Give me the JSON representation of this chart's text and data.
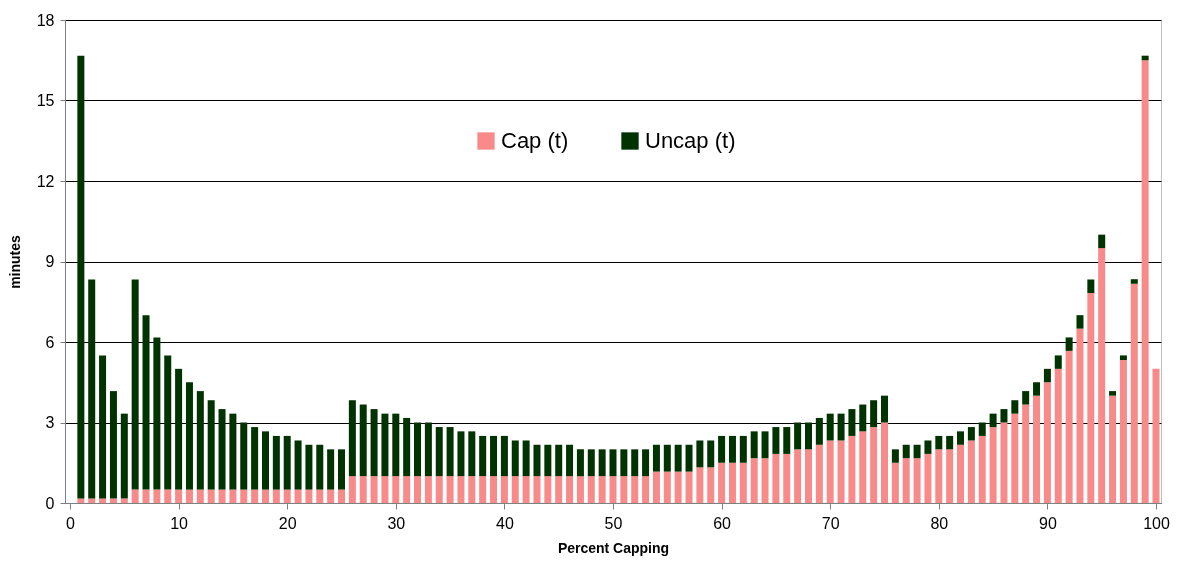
{
  "chart_data": {
    "type": "bar",
    "stacked": true,
    "xlabel": "Percent Capping",
    "ylabel": "minutes",
    "x": [
      1,
      2,
      3,
      4,
      5,
      6,
      7,
      8,
      9,
      10,
      11,
      12,
      13,
      14,
      15,
      16,
      17,
      18,
      19,
      20,
      21,
      22,
      23,
      24,
      25,
      26,
      27,
      28,
      29,
      30,
      31,
      32,
      33,
      34,
      35,
      36,
      37,
      38,
      39,
      40,
      41,
      42,
      43,
      44,
      45,
      46,
      47,
      48,
      49,
      50,
      51,
      52,
      53,
      54,
      55,
      56,
      57,
      58,
      59,
      60,
      61,
      62,
      63,
      64,
      65,
      66,
      67,
      68,
      69,
      70,
      71,
      72,
      73,
      74,
      75,
      76,
      77,
      78,
      79,
      80,
      81,
      82,
      83,
      84,
      85,
      86,
      87,
      88,
      89,
      90,
      91,
      92,
      93,
      94,
      95,
      96,
      97,
      98,
      99,
      100
    ],
    "xlim": [
      0,
      100
    ],
    "xticks": [
      0,
      10,
      20,
      30,
      40,
      50,
      60,
      70,
      80,
      90,
      100
    ],
    "ylim": [
      0,
      18
    ],
    "yticks": [
      0,
      3,
      6,
      9,
      12,
      15,
      18
    ],
    "grid": "y",
    "legend": "top",
    "series": [
      {
        "name": "Cap (t)",
        "color": "#f88a8a",
        "values": [
          0.17,
          0.17,
          0.17,
          0.17,
          0.17,
          0.5,
          0.5,
          0.5,
          0.5,
          0.5,
          0.5,
          0.5,
          0.5,
          0.5,
          0.5,
          0.5,
          0.5,
          0.5,
          0.5,
          0.5,
          0.5,
          0.5,
          0.5,
          0.5,
          0.5,
          1.0,
          1.0,
          1.0,
          1.0,
          1.0,
          1.0,
          1.0,
          1.0,
          1.0,
          1.0,
          1.0,
          1.0,
          1.0,
          1.0,
          1.0,
          1.0,
          1.0,
          1.0,
          1.0,
          1.0,
          1.0,
          1.0,
          1.0,
          1.0,
          1.0,
          1.0,
          1.0,
          1.0,
          1.17,
          1.17,
          1.17,
          1.17,
          1.33,
          1.33,
          1.5,
          1.5,
          1.5,
          1.67,
          1.67,
          1.83,
          1.83,
          2.0,
          2.0,
          2.17,
          2.33,
          2.33,
          2.5,
          2.67,
          2.83,
          3.0,
          1.5,
          1.67,
          1.67,
          1.83,
          2.0,
          2.0,
          2.17,
          2.33,
          2.5,
          2.83,
          3.0,
          3.33,
          3.67,
          4.0,
          4.5,
          5.0,
          5.67,
          6.5,
          7.83,
          9.5,
          4.0,
          5.33,
          8.17,
          16.5,
          5.0
        ]
      },
      {
        "name": "Uncap (t)",
        "color": "#003300",
        "values": [
          16.5,
          8.16,
          5.33,
          4.0,
          3.16,
          7.83,
          6.5,
          5.67,
          5.0,
          4.5,
          4.0,
          3.67,
          3.33,
          3.0,
          2.83,
          2.5,
          2.33,
          2.17,
          2.0,
          2.0,
          1.83,
          1.67,
          1.67,
          1.5,
          1.5,
          2.83,
          2.67,
          2.5,
          2.33,
          2.33,
          2.17,
          2.0,
          2.0,
          1.83,
          1.83,
          1.67,
          1.67,
          1.5,
          1.5,
          1.5,
          1.33,
          1.33,
          1.17,
          1.17,
          1.17,
          1.17,
          1.0,
          1.0,
          1.0,
          1.0,
          1.0,
          1.0,
          1.0,
          1.0,
          1.0,
          1.0,
          1.0,
          1.0,
          1.0,
          1.0,
          1.0,
          1.0,
          1.0,
          1.0,
          1.0,
          1.0,
          1.0,
          1.0,
          1.0,
          1.0,
          1.0,
          1.0,
          1.0,
          1.0,
          1.0,
          0.5,
          0.5,
          0.5,
          0.5,
          0.5,
          0.5,
          0.5,
          0.5,
          0.5,
          0.5,
          0.5,
          0.5,
          0.5,
          0.5,
          0.5,
          0.5,
          0.5,
          0.5,
          0.5,
          0.5,
          0.17,
          0.17,
          0.17,
          0.17,
          0
        ]
      }
    ]
  }
}
